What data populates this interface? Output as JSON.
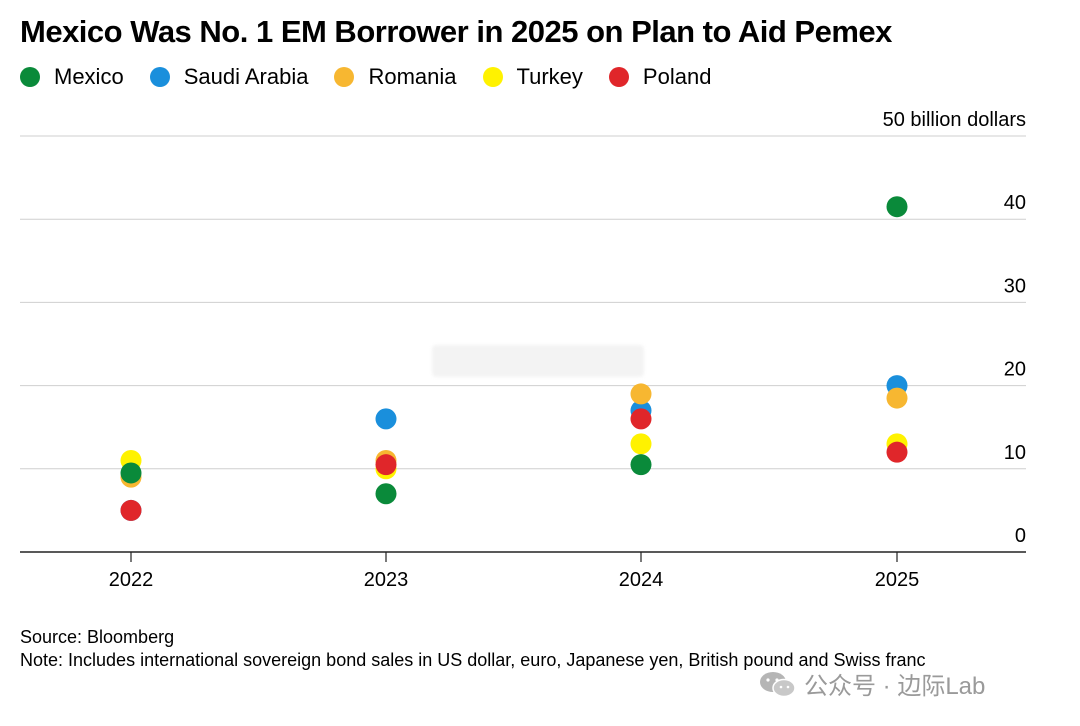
{
  "title": "Mexico Was No. 1 EM Borrower in 2025 on Plan to Aid Pemex",
  "chart_data": {
    "type": "scatter",
    "title": "Mexico Was No. 1 EM Borrower in 2025 on Plan to Aid Pemex",
    "unit_label": "50 billion dollars",
    "categories": [
      "2022",
      "2023",
      "2024",
      "2025"
    ],
    "ylim": [
      0,
      50
    ],
    "yticks": [
      0,
      10,
      20,
      30,
      40
    ],
    "grid": true,
    "legend_position": "top-left",
    "series": [
      {
        "name": "Mexico",
        "color": "#0a8a3a",
        "values": [
          9.5,
          7,
          10.5,
          41.5
        ]
      },
      {
        "name": "Saudi Arabia",
        "color": "#1a8fdc",
        "values": [
          5,
          16,
          17,
          20
        ]
      },
      {
        "name": "Romania",
        "color": "#f7b731",
        "values": [
          9,
          11,
          19,
          18.5
        ]
      },
      {
        "name": "Turkey",
        "color": "#fff200",
        "values": [
          11,
          10,
          13,
          13
        ]
      },
      {
        "name": "Poland",
        "color": "#e0262a",
        "values": [
          5,
          10.5,
          16,
          12
        ]
      }
    ]
  },
  "footer": {
    "source": "Source: Bloomberg",
    "note": "Note: Includes international sovereign bond sales in US dollar, euro, Japanese yen, British pound and Swiss franc"
  },
  "watermark": {
    "text": "公众号 · 边际Lab",
    "icon": "wechat-icon"
  }
}
